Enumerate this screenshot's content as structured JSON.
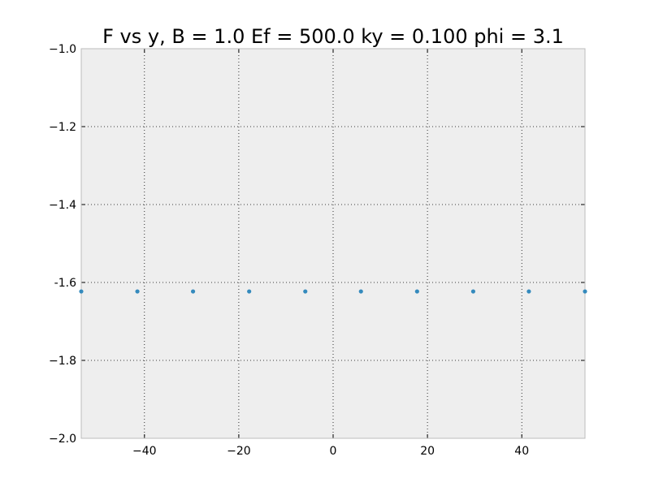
{
  "chart_data": {
    "type": "scatter",
    "title": "F vs y, B = 1.0 Ef = 500.0 ky = 0.100 phi = 3.1",
    "xlabel": "",
    "ylabel": "",
    "xlim": [
      -53.4,
      53.4
    ],
    "ylim": [
      -2.0,
      -1.0
    ],
    "x_ticks": [
      -40,
      -20,
      0,
      20,
      40
    ],
    "x_tick_labels": [
      "−40",
      "−20",
      "0",
      "20",
      "40"
    ],
    "y_ticks": [
      -1.0,
      -1.2,
      -1.4,
      -1.6,
      -1.8,
      -2.0
    ],
    "y_tick_labels": [
      "−1.0",
      "−1.2",
      "−1.4",
      "-1.6",
      "−1.8",
      "−2.0"
    ],
    "grid": true,
    "series": [
      {
        "x": [
          -53.4,
          -41.5,
          -29.7,
          -17.8,
          -5.9,
          5.9,
          17.8,
          29.7,
          41.5,
          53.4
        ],
        "y": [
          -1.623,
          -1.623,
          -1.623,
          -1.623,
          -1.623,
          -1.623,
          -1.623,
          -1.623,
          -1.623,
          -1.623
        ]
      }
    ],
    "colors": {
      "marker": "#348abd",
      "plot_background": "#eeeeee",
      "grid": "#000000",
      "frame": "#bcbcbc"
    }
  }
}
